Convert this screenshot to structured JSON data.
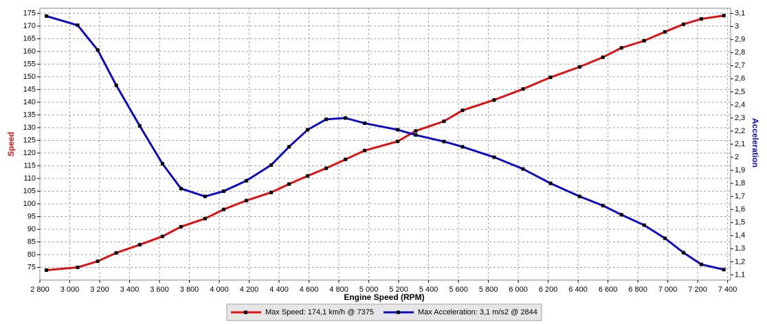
{
  "chart_data": {
    "type": "line",
    "x_label": "Engine Speed (RPM)",
    "y_label": "Speed",
    "y2_label": "Acceleration",
    "x": [
      2844,
      3053,
      3187,
      3311,
      3468,
      3620,
      3744,
      3905,
      4029,
      4181,
      4347,
      4467,
      4591,
      4715,
      4844,
      4973,
      5194,
      5314,
      5503,
      5627,
      5839,
      6032,
      6216,
      6410,
      6566,
      6690,
      6842,
      6981,
      7105,
      7224,
      7375
    ],
    "series": [
      {
        "name": "Max Speed: 174,1 km/h @ 7375",
        "color": "#e01010",
        "axis": "y",
        "values": [
          73.9,
          75,
          77.4,
          80.7,
          83.9,
          87.2,
          91,
          94.2,
          97.8,
          101.3,
          104.5,
          107.8,
          111,
          114,
          117.5,
          121,
          124.6,
          128.7,
          132.5,
          136.8,
          140.9,
          145.2,
          149.8,
          153.9,
          157.7,
          161.4,
          164.2,
          167.7,
          170.7,
          172.8,
          174.1
        ]
      },
      {
        "name": "Max Acceleration: 3,1 m/s2 @ 2844",
        "color": "#0a0ac8",
        "axis": "y2",
        "values": [
          3.08,
          3.01,
          2.82,
          2.55,
          2.24,
          1.95,
          1.76,
          1.7,
          1.74,
          1.82,
          1.94,
          2.08,
          2.21,
          2.29,
          2.3,
          2.26,
          2.21,
          2.17,
          2.12,
          2.08,
          2.0,
          1.91,
          1.8,
          1.7,
          1.63,
          1.56,
          1.48,
          1.38,
          1.27,
          1.18,
          1.14
        ]
      }
    ],
    "xlim": [
      2800,
      7420
    ],
    "xticks": [
      {
        "value": 2800,
        "label": "2 800"
      },
      {
        "value": 3000,
        "label": "3 000"
      },
      {
        "value": 3200,
        "label": "3 200"
      },
      {
        "value": 3400,
        "label": "3 400"
      },
      {
        "value": 3600,
        "label": "3 600"
      },
      {
        "value": 3800,
        "label": "3 800"
      },
      {
        "value": 4000,
        "label": "4 000"
      },
      {
        "value": 4200,
        "label": "4 200"
      },
      {
        "value": 4400,
        "label": "4 400"
      },
      {
        "value": 4600,
        "label": "4 600"
      },
      {
        "value": 4800,
        "label": "4 800"
      },
      {
        "value": 5000,
        "label": "5 000"
      },
      {
        "value": 5200,
        "label": "5 200"
      },
      {
        "value": 5400,
        "label": "5 400"
      },
      {
        "value": 5600,
        "label": "5 600"
      },
      {
        "value": 5800,
        "label": "5 800"
      },
      {
        "value": 6000,
        "label": "6 000"
      },
      {
        "value": 6200,
        "label": "6 200"
      },
      {
        "value": 6400,
        "label": "6 400"
      },
      {
        "value": 6600,
        "label": "6 600"
      },
      {
        "value": 6800,
        "label": "6 800"
      },
      {
        "value": 7000,
        "label": "7 000"
      },
      {
        "value": 7200,
        "label": "7 200"
      },
      {
        "value": 7400,
        "label": "7 400"
      }
    ],
    "ylim": [
      70,
      177
    ],
    "yticks": [
      75,
      80,
      85,
      90,
      95,
      100,
      105,
      110,
      115,
      120,
      125,
      130,
      135,
      140,
      145,
      150,
      155,
      160,
      165,
      170,
      175
    ],
    "y2lim": [
      1.06,
      3.14
    ],
    "y2ticks": [
      {
        "value": 1.1,
        "label": "1,1"
      },
      {
        "value": 1.2,
        "label": "1,2"
      },
      {
        "value": 1.3,
        "label": "1,3"
      },
      {
        "value": 1.4,
        "label": "1,4"
      },
      {
        "value": 1.5,
        "label": "1,5"
      },
      {
        "value": 1.6,
        "label": "1,6"
      },
      {
        "value": 1.7,
        "label": "1,7"
      },
      {
        "value": 1.8,
        "label": "1,8"
      },
      {
        "value": 1.9,
        "label": "1,9"
      },
      2,
      {
        "value": 2.1,
        "label": "2,1"
      },
      {
        "value": 2.2,
        "label": "2,2"
      },
      {
        "value": 2.3,
        "label": "2,3"
      },
      {
        "value": 2.4,
        "label": "2,4"
      },
      {
        "value": 2.5,
        "label": "2,5"
      },
      {
        "value": 2.6,
        "label": "2,6"
      },
      {
        "value": 2.7,
        "label": "2,7"
      },
      {
        "value": 2.8,
        "label": "2,8"
      },
      {
        "value": 2.9,
        "label": "2,9"
      },
      3,
      {
        "value": 3.1,
        "label": "3,1"
      }
    ],
    "grid": true
  }
}
